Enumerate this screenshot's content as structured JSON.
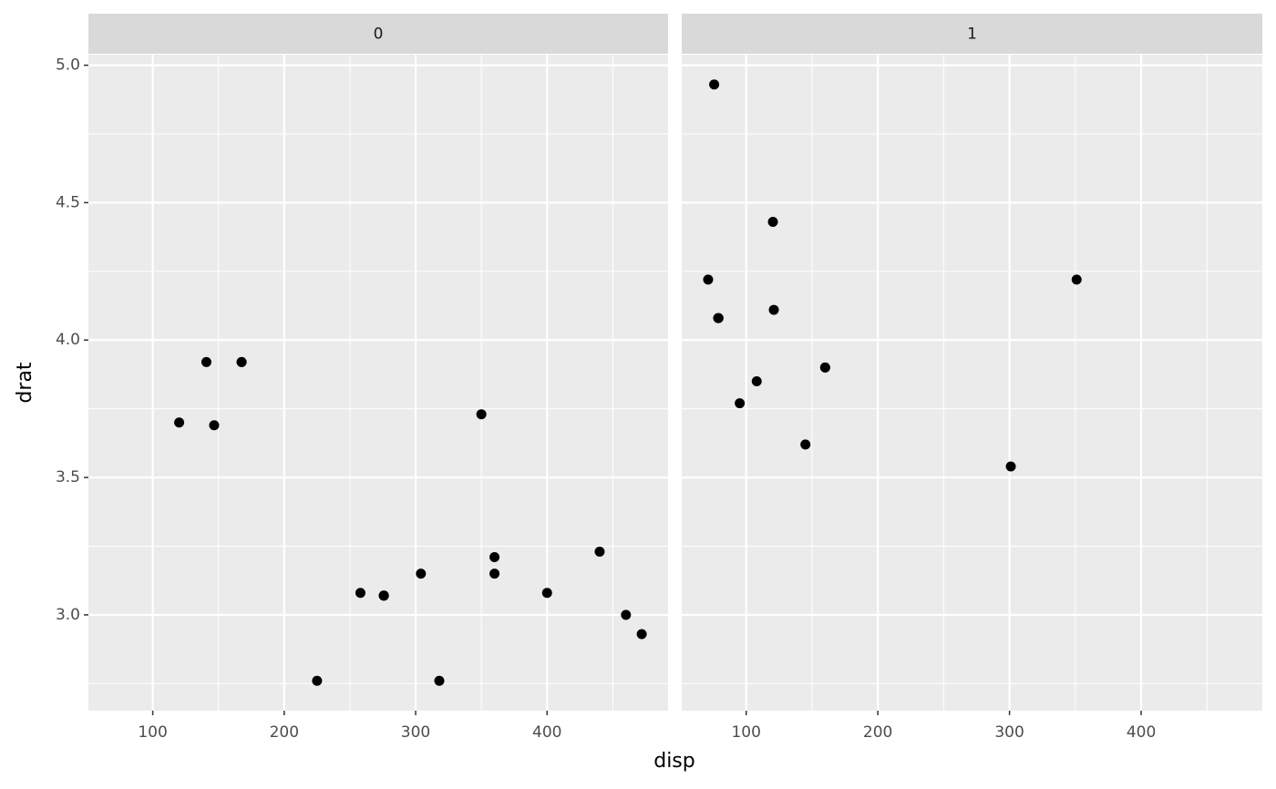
{
  "chart_data": {
    "type": "scatter",
    "x_label": "disp",
    "y_label": "drat",
    "xlim": [
      51.055,
      492.045
    ],
    "ylim": [
      2.6515,
      5.0385
    ],
    "xticks": [
      100,
      200,
      300,
      400
    ],
    "x_minor_ticks": [
      150,
      250,
      350,
      450
    ],
    "yticks": [
      {
        "value": 3,
        "label": "3.0"
      },
      3.5,
      {
        "value": 4,
        "label": "4.0"
      },
      4.5,
      {
        "value": 5,
        "label": "5.0"
      }
    ],
    "y_minor_ticks": [
      2.75,
      3.25,
      3.75,
      4.25,
      4.75
    ],
    "grid": true,
    "color": "#000000",
    "panels": [
      {
        "strip": "0",
        "x": [
          258,
          360,
          225,
          360,
          146.7,
          140.8,
          167.6,
          167.6,
          275.8,
          275.8,
          275.8,
          472,
          460,
          440,
          120.1,
          318,
          304,
          350,
          400
        ],
        "y": [
          3.08,
          3.15,
          2.76,
          3.21,
          3.69,
          3.92,
          3.92,
          3.92,
          3.07,
          3.07,
          3.07,
          2.93,
          3.0,
          3.23,
          3.7,
          2.76,
          3.15,
          3.73,
          3.08
        ]
      },
      {
        "strip": "1",
        "x": [
          160,
          160,
          108,
          78.7,
          75.7,
          71.1,
          79,
          120.3,
          95.1,
          351,
          145,
          301,
          121
        ],
        "y": [
          3.9,
          3.9,
          3.85,
          4.08,
          4.93,
          4.22,
          4.08,
          4.43,
          3.77,
          4.22,
          3.62,
          3.54,
          4.11
        ]
      }
    ]
  }
}
